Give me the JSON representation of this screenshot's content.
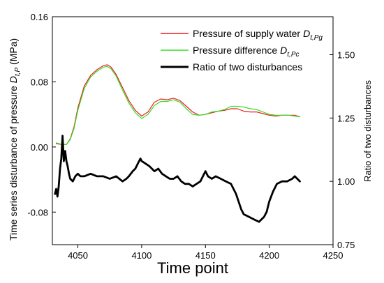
{
  "chart_data": {
    "type": "line",
    "xlabel": "Time point",
    "ylabel_left": {
      "main": "Time series disturbance of pressure ",
      "symbol": "D",
      "sub": "t,P",
      "unit": " (MPa)"
    },
    "ylabel_right": "Ratio of two disturbances",
    "xlim": [
      4030,
      4250
    ],
    "ylim_left": [
      -0.12,
      0.16
    ],
    "ylim_right": [
      0.75,
      1.65
    ],
    "x_ticks": [
      "4050",
      "4100",
      "4150",
      "4200",
      "4250"
    ],
    "y_left_ticks": [
      "-0.08",
      "0.00",
      "0.08",
      "0.16"
    ],
    "y_right_ticks": [
      "0.75",
      "1.00",
      "1.25",
      "1.50"
    ],
    "grid": false,
    "legend_position": "top-right",
    "series": [
      {
        "name": "Pressure of supply water",
        "legend_symbol": "D",
        "legend_sub": "t,Pg",
        "axis": "left",
        "color": "#ee1c1c",
        "width": 1.2,
        "x": [
          4033,
          4038,
          4041,
          4044,
          4047,
          4050,
          4055,
          4060,
          4065,
          4070,
          4073,
          4076,
          4080,
          4085,
          4090,
          4095,
          4100,
          4105,
          4110,
          4115,
          4120,
          4125,
          4130,
          4135,
          4140,
          4145,
          4150,
          4155,
          4160,
          4165,
          4170,
          4175,
          4180,
          4185,
          4190,
          4195,
          4200,
          4205,
          4210,
          4215,
          4220,
          4224
        ],
        "values": [
          0.004,
          0.003,
          0.003,
          0.01,
          0.025,
          0.048,
          0.075,
          0.088,
          0.095,
          0.1,
          0.101,
          0.098,
          0.089,
          0.073,
          0.057,
          0.045,
          0.038,
          0.043,
          0.055,
          0.059,
          0.058,
          0.06,
          0.057,
          0.05,
          0.043,
          0.039,
          0.04,
          0.042,
          0.044,
          0.045,
          0.047,
          0.047,
          0.044,
          0.043,
          0.043,
          0.041,
          0.039,
          0.038,
          0.039,
          0.039,
          0.039,
          0.037
        ]
      },
      {
        "name": "Pressure difference",
        "legend_symbol": "D",
        "legend_sub": "t,Pc",
        "axis": "left",
        "color": "#33dd22",
        "width": 1.2,
        "x": [
          4033,
          4038,
          4041,
          4044,
          4047,
          4050,
          4055,
          4060,
          4065,
          4070,
          4073,
          4076,
          4080,
          4085,
          4090,
          4095,
          4100,
          4105,
          4110,
          4115,
          4120,
          4125,
          4130,
          4135,
          4140,
          4145,
          4150,
          4155,
          4160,
          4165,
          4170,
          4175,
          4180,
          4185,
          4190,
          4195,
          4200,
          4205,
          4210,
          4215,
          4220,
          4224
        ],
        "values": [
          0.005,
          0.003,
          0.003,
          0.009,
          0.023,
          0.045,
          0.072,
          0.086,
          0.093,
          0.098,
          0.099,
          0.096,
          0.087,
          0.07,
          0.054,
          0.042,
          0.035,
          0.04,
          0.051,
          0.056,
          0.056,
          0.058,
          0.055,
          0.047,
          0.04,
          0.039,
          0.04,
          0.043,
          0.044,
          0.046,
          0.05,
          0.05,
          0.049,
          0.047,
          0.046,
          0.043,
          0.04,
          0.039,
          0.039,
          0.039,
          0.038,
          0.037
        ]
      },
      {
        "name": "Ratio of two disturbances",
        "legend_symbol": "",
        "legend_sub": "",
        "axis": "right",
        "color": "#000000",
        "width": 2.8,
        "x": [
          4032,
          4033,
          4034,
          4035,
          4036,
          4037,
          4038,
          4039,
          4040,
          4041,
          4042,
          4043,
          4044,
          4046,
          4048,
          4050,
          4052,
          4055,
          4060,
          4065,
          4070,
          4075,
          4080,
          4085,
          4088,
          4090,
          4093,
          4095,
          4097,
          4099,
          4100,
          4103,
          4106,
          4110,
          4113,
          4116,
          4119,
          4122,
          4125,
          4128,
          4131,
          4134,
          4137,
          4140,
          4143,
          4146,
          4148,
          4150,
          4152,
          4155,
          4158,
          4162,
          4166,
          4170,
          4174,
          4178,
          4180,
          4184,
          4188,
          4192,
          4196,
          4198,
          4200,
          4203,
          4206,
          4210,
          4214,
          4218,
          4220,
          4224
        ],
        "values": [
          0.95,
          0.97,
          0.94,
          0.98,
          1.05,
          1.09,
          1.18,
          1.08,
          1.12,
          1.08,
          1.06,
          1.03,
          1.01,
          1.0,
          1.02,
          1.03,
          1.02,
          1.02,
          1.03,
          1.02,
          1.02,
          1.01,
          1.02,
          1.0,
          1.01,
          1.02,
          1.04,
          1.05,
          1.07,
          1.09,
          1.08,
          1.07,
          1.06,
          1.04,
          1.05,
          1.03,
          1.02,
          1.01,
          1.01,
          1.02,
          1.0,
          0.99,
          0.99,
          0.98,
          0.99,
          1.0,
          1.02,
          1.04,
          1.02,
          1.01,
          1.02,
          1.01,
          1.0,
          0.99,
          0.95,
          0.89,
          0.87,
          0.86,
          0.85,
          0.84,
          0.86,
          0.88,
          0.92,
          0.96,
          0.99,
          1.0,
          1.0,
          1.01,
          1.02,
          1.0
        ]
      }
    ]
  }
}
